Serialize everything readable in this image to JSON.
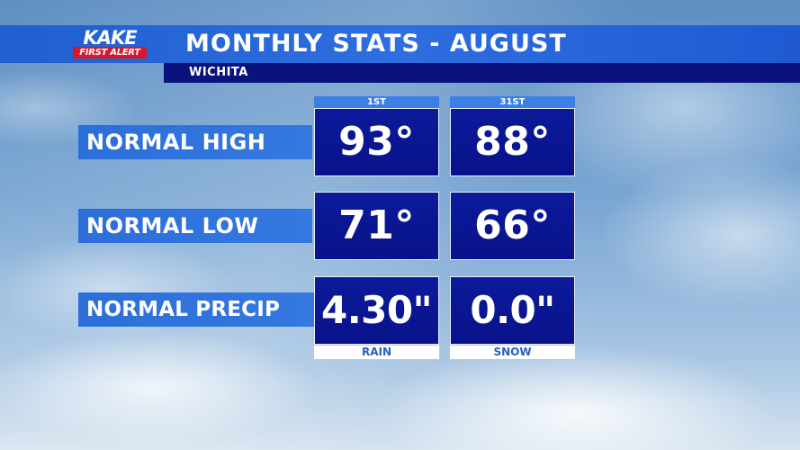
{
  "header": {
    "title": "MONTHLY STATS - AUGUST",
    "subtitle": "WICHITA"
  },
  "logo": {
    "top_text": "KAKE",
    "bottom_text": "FIRST ALERT"
  },
  "columns": [
    "1ST",
    "31ST"
  ],
  "rows": [
    {
      "label": "NORMAL HIGH",
      "values": [
        "93°",
        "88°"
      ]
    },
    {
      "label": "NORMAL LOW",
      "values": [
        "71°",
        "66°"
      ]
    },
    {
      "label": "NORMAL PRECIP",
      "values": [
        "4.30\"",
        "0.0\""
      ]
    }
  ],
  "footer": [
    "RAIN",
    "SNOW"
  ],
  "colors": {
    "title_bar": "#2e6ee0",
    "subtitle_bar": "#0a137d",
    "value_box": "#0c1a9a",
    "label_bar": "#3478e0",
    "logo_red": "#d7182a"
  }
}
